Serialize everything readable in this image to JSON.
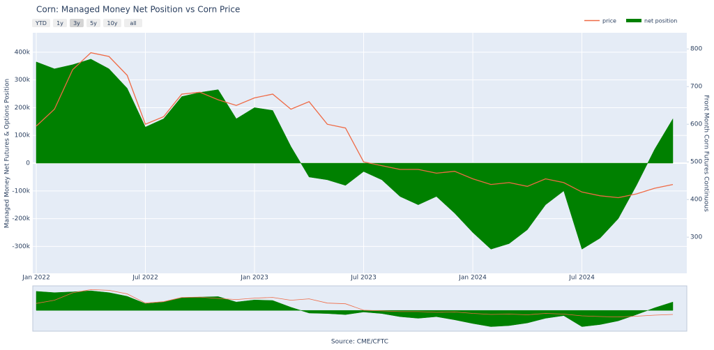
{
  "chart_data": {
    "type": "area-line",
    "title": "Corn: Managed Money Net Position vs Corn Price",
    "buttons": [
      "YTD",
      "1y",
      "3y",
      "5y",
      "10y",
      "all"
    ],
    "active_button": "3y",
    "y_label": "Managed Money Net Futures & Options Position",
    "y2_label": "Front Month Corn Futures Continuous",
    "source": "Source: CME/CFTC",
    "legend": "top-right",
    "grid": true,
    "background": "#e5ecf6",
    "x": [
      "2022-01",
      "2022-02",
      "2022-03",
      "2022-04",
      "2022-05",
      "2022-06",
      "2022-07",
      "2022-08",
      "2022-09",
      "2022-10",
      "2022-11",
      "2022-12",
      "2023-01",
      "2023-02",
      "2023-03",
      "2023-04",
      "2023-05",
      "2023-06",
      "2023-07",
      "2023-08",
      "2023-09",
      "2023-10",
      "2023-11",
      "2023-12",
      "2024-01",
      "2024-02",
      "2024-03",
      "2024-04",
      "2024-05",
      "2024-06",
      "2024-07",
      "2024-08",
      "2024-09",
      "2024-10",
      "2024-11",
      "2024-12"
    ],
    "xlim": [
      "2022-01",
      "2024-12"
    ],
    "xticks": [
      {
        "value": "2022-01",
        "label": "Jan 2022"
      },
      {
        "value": "2022-07",
        "label": "Jul 2022"
      },
      {
        "value": "2023-01",
        "label": "Jan 2023"
      },
      {
        "value": "2023-07",
        "label": "Jul 2023"
      },
      {
        "value": "2024-01",
        "label": "Jan 2024"
      },
      {
        "value": "2024-07",
        "label": "Jul 2024"
      }
    ],
    "ylim": [
      -397000,
      470000
    ],
    "yticks": [
      {
        "value": -300000,
        "label": "-300k"
      },
      {
        "value": -200000,
        "label": "-200k"
      },
      {
        "value": -100000,
        "label": "-100k"
      },
      0,
      {
        "value": 100000,
        "label": "100k"
      },
      {
        "value": 200000,
        "label": "200k"
      },
      {
        "value": 300000,
        "label": "300k"
      },
      {
        "value": 400000,
        "label": "400k"
      }
    ],
    "y2lim": [
      204,
      843
    ],
    "y2ticks": [
      300,
      400,
      500,
      600,
      700,
      800
    ],
    "series": [
      {
        "name": "price",
        "kind": "line",
        "axis": "y2",
        "color": "#ef6a45",
        "values": [
          595,
          640,
          745,
          790,
          780,
          730,
          600,
          620,
          680,
          685,
          665,
          650,
          670,
          680,
          640,
          660,
          600,
          590,
          500,
          490,
          480,
          480,
          470,
          475,
          455,
          440,
          445,
          435,
          455,
          445,
          420,
          410,
          405,
          415,
          430,
          440
        ]
      },
      {
        "name": "net position",
        "kind": "area",
        "color": "#008000",
        "values": [
          365000,
          340000,
          355000,
          375000,
          340000,
          270000,
          130000,
          160000,
          240000,
          255000,
          265000,
          160000,
          200000,
          190000,
          60000,
          -50000,
          -60000,
          -80000,
          -30000,
          -60000,
          -120000,
          -150000,
          -120000,
          -180000,
          -250000,
          -310000,
          -290000,
          -240000,
          -150000,
          -100000,
          -310000,
          -270000,
          -200000,
          -80000,
          50000,
          160000
        ]
      }
    ]
  }
}
